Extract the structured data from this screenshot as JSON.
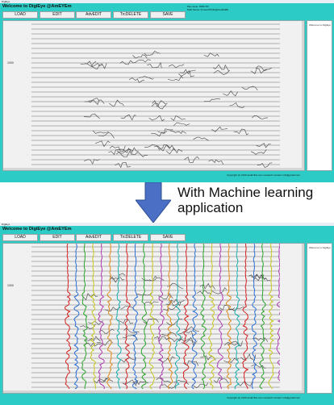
{
  "window_title": "DigiEye",
  "app_title": "Welcome to DigiEye @AmEYEm",
  "file_info": {
    "name_line": "File name: 0489.TIF",
    "path_line": "Path Name: D:\\seis\\TIF\\Digitized\\0489"
  },
  "toolbar": {
    "load": "LOAD",
    "edit": "EDIT",
    "advedit": "AdvEDIT",
    "trcdelete": "TrcDELETE",
    "save": "SAVE"
  },
  "side_panel_text": "Welcome to DigiEye",
  "y_tick": "1000",
  "copyright": "Copyright (c) 2019 amEYEm.com research  contact: info@gmail.com",
  "caption": "With Machine learning application",
  "colors": {
    "window_bg": "#2ccbc6",
    "arrow": "#4a6fc4",
    "trace_colors": [
      "#d62020",
      "#2a6fd6",
      "#2aa52a",
      "#c8c820",
      "#b23ab2",
      "#e08a1a",
      "#1ab0b0"
    ]
  }
}
